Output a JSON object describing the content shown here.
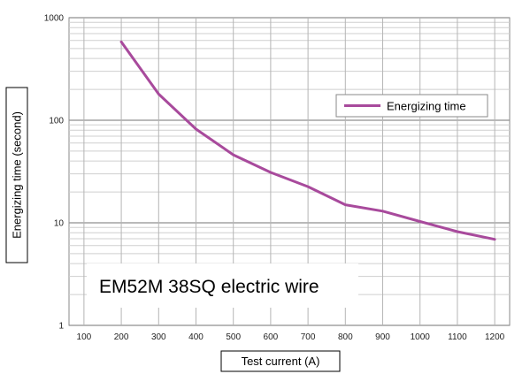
{
  "chart_data": {
    "type": "line",
    "title": "",
    "annotation": "EM52M 38SQ electric wire",
    "xlabel": "Test current (A)",
    "ylabel": "Energizing time (second)",
    "x_scale": "linear",
    "y_scale": "log",
    "xlim": [
      60,
      1240
    ],
    "ylim": [
      1,
      1000
    ],
    "x_ticks": [
      "100",
      "200",
      "300",
      "400",
      "500",
      "600",
      "700",
      "800",
      "900",
      "1000",
      "1100",
      "1200"
    ],
    "y_ticks": [
      "1",
      "10",
      "100",
      "1000"
    ],
    "grid": true,
    "legend_position": "top-right",
    "series": [
      {
        "name": "Energizing time",
        "color": "#a84a9c",
        "x": [
          200,
          300,
          400,
          500,
          600,
          700,
          800,
          900,
          1000,
          1100,
          1200
        ],
        "y": [
          580,
          180,
          82,
          46,
          31,
          22.5,
          15,
          13,
          10.3,
          8.2,
          6.9
        ]
      }
    ]
  }
}
